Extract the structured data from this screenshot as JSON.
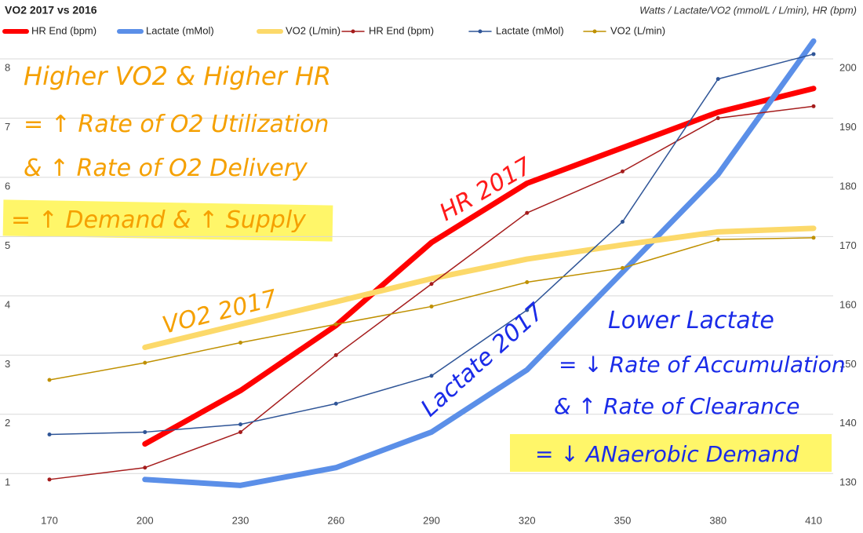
{
  "chart_data": {
    "type": "line",
    "title": "VO2 2017 vs 2016",
    "subtitle": "Watts / Lactate/VO2 (mmol/L / L/min), HR (bpm)",
    "x": [
      170,
      200,
      230,
      260,
      290,
      320,
      350,
      380,
      410
    ],
    "xlim": [
      170,
      410
    ],
    "xticks": [
      170,
      200,
      230,
      260,
      290,
      320,
      350,
      380,
      410
    ],
    "ylim": [
      0.5,
      8.4
    ],
    "yticks": [
      1,
      2,
      3,
      4,
      5,
      6,
      7,
      8
    ],
    "y2lim": [
      125,
      204
    ],
    "y2ticks": [
      130,
      140,
      150,
      160,
      170,
      180,
      190,
      200
    ],
    "grid": true,
    "series": [
      {
        "name": "HR End (bpm)",
        "color": "#ff0000",
        "line_width": 7,
        "markers": false,
        "axis": "y2",
        "values": [
          null,
          135,
          144,
          155,
          169,
          179,
          185,
          191,
          195
        ]
      },
      {
        "name": "Lactate (mMol)",
        "color": "#5b8fe8",
        "line_width": 7,
        "markers": false,
        "values": [
          null,
          0.9,
          0.8,
          1.1,
          1.7,
          2.75,
          4.4,
          6.05,
          8.3
        ]
      },
      {
        "name": "VO2 (L/min)",
        "color": "#fcd96a",
        "line_width": 7,
        "markers": false,
        "values": [
          null,
          3.13,
          3.52,
          3.9,
          4.29,
          4.62,
          4.86,
          5.08,
          5.14
        ]
      },
      {
        "name": "HR End (bpm)",
        "color": "#a51c1c",
        "line_width": 1.5,
        "markers": true,
        "axis": "y2",
        "values": [
          129,
          131,
          137,
          150,
          162,
          174,
          181,
          190,
          192
        ]
      },
      {
        "name": "Lactate (mMol)",
        "color": "#2f5597",
        "line_width": 1.5,
        "markers": true,
        "values": [
          1.66,
          1.7,
          1.83,
          2.18,
          2.65,
          3.76,
          5.25,
          7.66,
          8.08
        ]
      },
      {
        "name": "VO2 (L/min)",
        "color": "#bf9000",
        "line_width": 1.5,
        "markers": true,
        "values": [
          2.58,
          2.87,
          3.21,
          3.52,
          3.82,
          4.23,
          4.47,
          4.95,
          4.98
        ]
      }
    ],
    "annotations": [
      "Higher VO2 & Higher HR",
      "= ↑ Rate of O2 Utilization",
      "& ↑ Rate of O2 Delivery",
      "= ↑ Demand & ↑ Supply",
      "HR 2017",
      "VO2 2017",
      "Lactate 2017",
      "Lower Lactate",
      "= ↓ Rate of Accumulation",
      "& ↑ Rate of Clearance",
      "= ↓ ANaerobic Demand"
    ]
  }
}
